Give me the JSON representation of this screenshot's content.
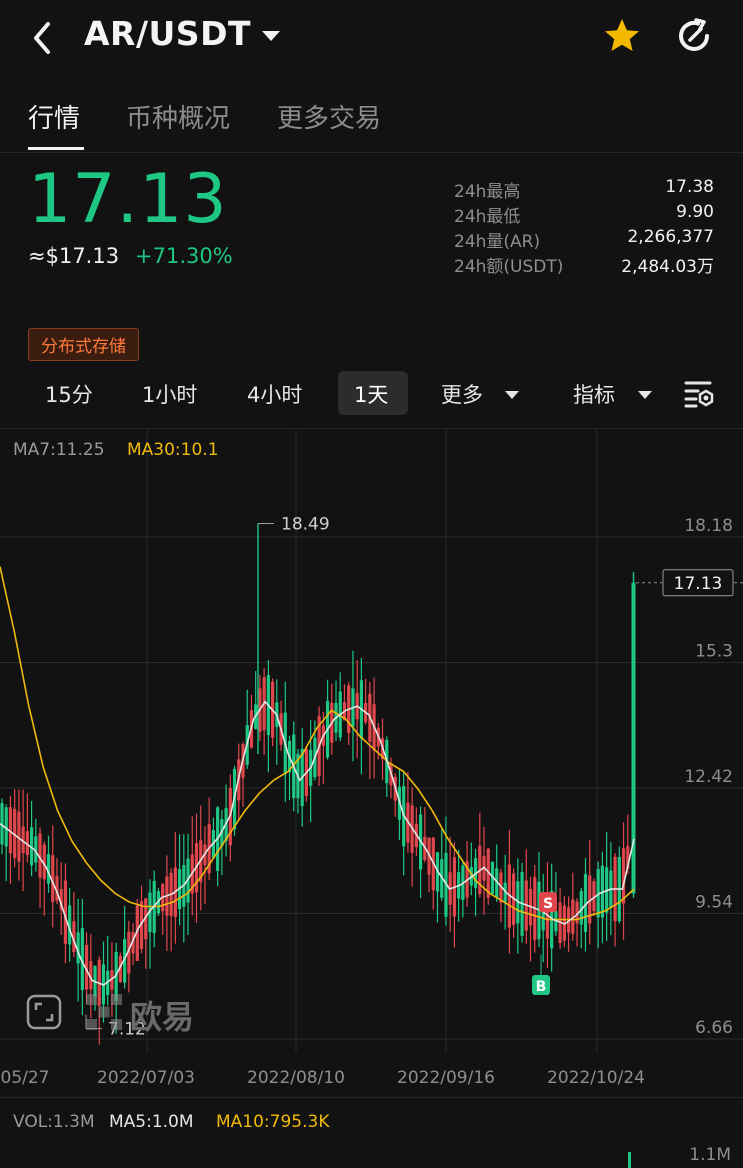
{
  "header": {
    "pair": "AR/USDT"
  },
  "tabs": [
    {
      "label": "行情",
      "active": true
    },
    {
      "label": "币种概况",
      "active": false
    },
    {
      "label": "更多交易",
      "active": false
    }
  ],
  "ticker": {
    "price": "17.13",
    "usd_price": "≈$17.13",
    "change": "+71.30%",
    "stats": [
      {
        "label": "24h最高",
        "value": "17.38"
      },
      {
        "label": "24h最低",
        "value": "9.90"
      },
      {
        "label": "24h量(AR)",
        "value": "2,266,377"
      },
      {
        "label": "24h额(USDT)",
        "value": "2,484.03万"
      }
    ],
    "tag": "分布式存储"
  },
  "intervals": {
    "items": [
      "15分",
      "1小时",
      "4小时",
      "1天"
    ],
    "active": "1天",
    "more": "更多",
    "indicator": "指标"
  },
  "chart_legend": {
    "ma7": "MA7:11.25",
    "ma30": "MA30:10.1"
  },
  "chart_data": {
    "type": "candlestick",
    "interval": "1天",
    "y_ticks": [
      "18.18",
      "15.3",
      "12.42",
      "9.54",
      "6.66"
    ],
    "x_ticks": [
      "05/27",
      "2022/07/03",
      "2022/08/10",
      "2022/09/16",
      "2022/10/24"
    ],
    "ylim": [
      6.66,
      18.18
    ],
    "last_price": "17.13",
    "high_marker": "18.49",
    "low_marker": "7.12",
    "trade_markers": [
      "S",
      "B"
    ],
    "series": [
      {
        "name": "MA7",
        "values": [
          11.6,
          11.4,
          11.2,
          11.0,
          10.6,
          10.0,
          9.2,
          8.5,
          8.0,
          7.9,
          8.1,
          8.6,
          9.2,
          9.6,
          9.9,
          10.0,
          10.2,
          10.6,
          11.0,
          11.3,
          11.8,
          13.0,
          14.0,
          14.4,
          14.1,
          13.2,
          12.6,
          12.9,
          13.6,
          14.0,
          14.2,
          14.3,
          14.1,
          13.5,
          12.7,
          11.8,
          11.4,
          11.0,
          10.5,
          10.1,
          10.2,
          10.4,
          10.6,
          10.3,
          10.0,
          9.8,
          9.7,
          9.6,
          9.4,
          9.3,
          9.5,
          9.8,
          10.0,
          10.1,
          10.1,
          11.25
        ]
      },
      {
        "name": "MA30",
        "values": [
          17.5,
          16.0,
          14.3,
          12.9,
          11.9,
          11.2,
          10.7,
          10.3,
          10.0,
          9.8,
          9.7,
          9.7,
          9.8,
          10.0,
          10.4,
          10.9,
          11.4,
          11.9,
          12.3,
          12.6,
          12.8,
          13.2,
          13.8,
          14.2,
          14.0,
          13.6,
          13.3,
          13.0,
          12.8,
          12.4,
          11.9,
          11.3,
          10.8,
          10.3,
          10.0,
          9.8,
          9.6,
          9.5,
          9.4,
          9.4,
          9.4,
          9.5,
          9.6,
          9.8,
          10.1
        ]
      }
    ]
  },
  "volume_legend": {
    "vol": "VOL:1.3M",
    "ma5": "MA5:1.0M",
    "ma10": "MA10:795.3K",
    "axis_top": "1.1M"
  },
  "watermark": "欧易",
  "colors": {
    "up": "#1ec784",
    "down": "#e0474c",
    "ma30": "#f0b90b",
    "ma7": "#e6e6e6",
    "background": "#121212"
  }
}
